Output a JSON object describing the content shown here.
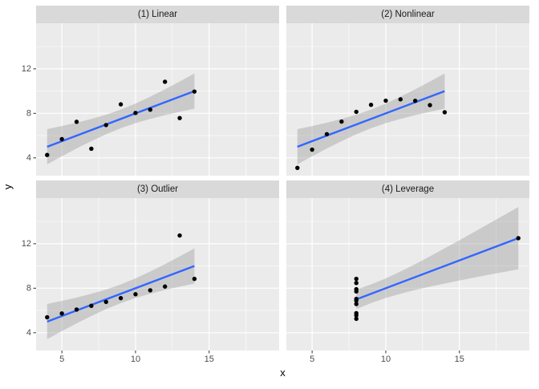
{
  "figure": {
    "background": "#ffffff",
    "panel_bg": "#ebebeb",
    "strip_bg": "#d9d9d9",
    "strip_text_color": "#1a1a1a",
    "grid_color": "#ffffff",
    "point_color": "#000000",
    "line_color": "#3366ff",
    "ribbon_color": "#999999",
    "ribbon_opacity": 0.4,
    "axis_text_color": "#4d4d4d",
    "axis_title_color": "#000000",
    "tick_mark_color": "#333333"
  },
  "chart_data": {
    "type": "scatter",
    "title": "",
    "xlabel": "x",
    "ylabel": "y",
    "facet_layout": "2x2 grid, shared fixed scales",
    "legend": "none",
    "grid": "on",
    "x_domain": [
      3.25,
      19.75
    ],
    "y_domain": [
      2.4,
      16.1
    ],
    "x_ticks": [
      5,
      10,
      15
    ],
    "y_ticks": [
      4,
      8,
      12
    ],
    "x_minor_ticks": [
      7.5,
      12.5,
      17.5
    ],
    "y_minor_ticks": [
      6,
      10,
      14
    ],
    "panels": [
      {
        "label": "(1) Linear",
        "points": [
          [
            10,
            8.04
          ],
          [
            8,
            6.95
          ],
          [
            13,
            7.58
          ],
          [
            9,
            8.81
          ],
          [
            11,
            8.33
          ],
          [
            14,
            9.96
          ],
          [
            6,
            7.24
          ],
          [
            4,
            4.26
          ],
          [
            12,
            10.84
          ],
          [
            7,
            4.82
          ],
          [
            5,
            5.68
          ]
        ],
        "smooth": {
          "x": [
            4,
            14
          ],
          "y": [
            5.0,
            10.0
          ]
        },
        "ribbon": [
          [
            4,
            3.42,
            6.58
          ],
          [
            5,
            4.14,
            6.86
          ],
          [
            6,
            4.84,
            7.16
          ],
          [
            7,
            5.5,
            7.5
          ],
          [
            8,
            6.12,
            7.88
          ],
          [
            9,
            6.66,
            8.34
          ],
          [
            10,
            7.12,
            8.88
          ],
          [
            11,
            7.5,
            9.5
          ],
          [
            12,
            7.84,
            10.16
          ],
          [
            13,
            8.14,
            10.86
          ],
          [
            14,
            8.42,
            11.58
          ]
        ]
      },
      {
        "label": "(2) Nonlinear",
        "points": [
          [
            10,
            9.14
          ],
          [
            8,
            8.14
          ],
          [
            13,
            8.74
          ],
          [
            9,
            8.77
          ],
          [
            11,
            9.26
          ],
          [
            14,
            8.1
          ],
          [
            6,
            6.13
          ],
          [
            4,
            3.1
          ],
          [
            12,
            9.13
          ],
          [
            7,
            7.26
          ],
          [
            5,
            4.74
          ]
        ],
        "smooth": {
          "x": [
            4,
            14
          ],
          "y": [
            5.0,
            10.0
          ]
        },
        "ribbon": [
          [
            4,
            3.42,
            6.58
          ],
          [
            5,
            4.14,
            6.86
          ],
          [
            6,
            4.84,
            7.16
          ],
          [
            7,
            5.5,
            7.5
          ],
          [
            8,
            6.12,
            7.88
          ],
          [
            9,
            6.66,
            8.34
          ],
          [
            10,
            7.12,
            8.88
          ],
          [
            11,
            7.5,
            9.5
          ],
          [
            12,
            7.84,
            10.16
          ],
          [
            13,
            8.14,
            10.86
          ],
          [
            14,
            8.42,
            11.58
          ]
        ]
      },
      {
        "label": "(3) Outlier",
        "points": [
          [
            10,
            7.46
          ],
          [
            8,
            6.77
          ],
          [
            13,
            12.74
          ],
          [
            9,
            7.11
          ],
          [
            11,
            7.81
          ],
          [
            14,
            8.84
          ],
          [
            6,
            6.08
          ],
          [
            4,
            5.39
          ],
          [
            12,
            8.15
          ],
          [
            7,
            6.42
          ],
          [
            5,
            5.73
          ]
        ],
        "smooth": {
          "x": [
            4,
            14
          ],
          "y": [
            5.0,
            10.0
          ]
        },
        "ribbon": [
          [
            4,
            3.42,
            6.58
          ],
          [
            5,
            4.14,
            6.86
          ],
          [
            6,
            4.84,
            7.16
          ],
          [
            7,
            5.5,
            7.5
          ],
          [
            8,
            6.12,
            7.88
          ],
          [
            9,
            6.66,
            8.34
          ],
          [
            10,
            7.12,
            8.88
          ],
          [
            11,
            7.5,
            9.5
          ],
          [
            12,
            7.84,
            10.16
          ],
          [
            13,
            8.14,
            10.86
          ],
          [
            14,
            8.42,
            11.58
          ]
        ]
      },
      {
        "label": "(4) Leverage",
        "points": [
          [
            8,
            6.58
          ],
          [
            8,
            5.76
          ],
          [
            8,
            7.71
          ],
          [
            8,
            8.84
          ],
          [
            8,
            8.47
          ],
          [
            8,
            7.04
          ],
          [
            8,
            5.25
          ],
          [
            19,
            12.5
          ],
          [
            8,
            5.56
          ],
          [
            8,
            7.91
          ],
          [
            8,
            6.89
          ]
        ],
        "smooth": {
          "x": [
            8,
            19
          ],
          "y": [
            7.0,
            12.5
          ]
        },
        "ribbon": [
          [
            8,
            6.12,
            7.88
          ],
          [
            9,
            6.66,
            8.34
          ],
          [
            10,
            7.12,
            8.88
          ],
          [
            11,
            7.5,
            9.5
          ],
          [
            12,
            7.84,
            10.16
          ],
          [
            13,
            8.14,
            10.86
          ],
          [
            14,
            8.42,
            11.58
          ],
          [
            15,
            8.69,
            12.31
          ],
          [
            16,
            8.95,
            13.05
          ],
          [
            17,
            9.21,
            13.8
          ],
          [
            18,
            9.46,
            14.55
          ],
          [
            19,
            9.7,
            15.3
          ]
        ]
      }
    ]
  }
}
